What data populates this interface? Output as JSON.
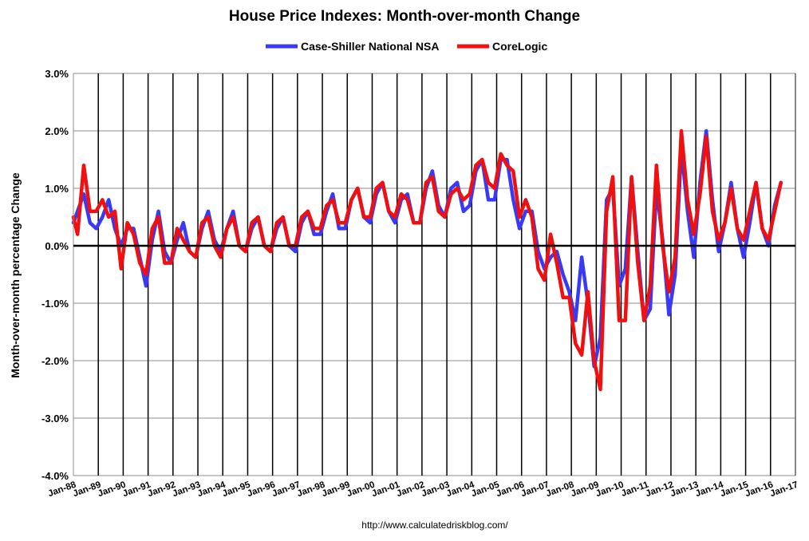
{
  "chart_data": {
    "type": "line",
    "title": "House Price Indexes: Month-over-month Change",
    "ylabel": "Month-over-month percentage Change",
    "xlabel": "",
    "source_note": "http://www.calculatedriskblog.com/",
    "ylim": [
      -4.0,
      3.0
    ],
    "yticks": [
      3.0,
      2.0,
      1.0,
      0.0,
      -1.0,
      -2.0,
      -3.0,
      -4.0
    ],
    "ytick_labels": [
      "3.0%",
      "2.0%",
      "1.0%",
      "0.0%",
      "-1.0%",
      "-2.0%",
      "-3.0%",
      "-4.0%"
    ],
    "x_start": "1988-01",
    "x_end": "2017-01",
    "xtick_labels": [
      "Jan-88",
      "Jan-89",
      "Jan-90",
      "Jan-91",
      "Jan-92",
      "Jan-93",
      "Jan-94",
      "Jan-95",
      "Jan-96",
      "Jan-97",
      "Jan-98",
      "Jan-99",
      "Jan-00",
      "Jan-01",
      "Jan-02",
      "Jan-03",
      "Jan-04",
      "Jan-05",
      "Jan-06",
      "Jan-07",
      "Jan-08",
      "Jan-09",
      "Jan-10",
      "Jan-11",
      "Jan-12",
      "Jan-13",
      "Jan-14",
      "Jan-15",
      "Jan-16",
      "Jan-17"
    ],
    "grid": "vertical gridlines at each January; horizontal gridlines at each 1.0%",
    "legend_position": "top-center",
    "series": [
      {
        "name": "Case-Shiller National NSA",
        "color": "#3a3af5",
        "points": [
          [
            "1988-01",
            0.4
          ],
          [
            "1988-03",
            0.6
          ],
          [
            "1988-06",
            0.9
          ],
          [
            "1988-09",
            0.4
          ],
          [
            "1988-12",
            0.3
          ],
          [
            "1989-03",
            0.5
          ],
          [
            "1989-06",
            0.8
          ],
          [
            "1989-09",
            0.3
          ],
          [
            "1989-12",
            0.0
          ],
          [
            "1990-03",
            0.3
          ],
          [
            "1990-06",
            0.3
          ],
          [
            "1990-09",
            -0.2
          ],
          [
            "1990-12",
            -0.7
          ],
          [
            "1991-03",
            0.1
          ],
          [
            "1991-06",
            0.6
          ],
          [
            "1991-09",
            -0.1
          ],
          [
            "1991-12",
            -0.3
          ],
          [
            "1992-03",
            0.1
          ],
          [
            "1992-06",
            0.4
          ],
          [
            "1992-09",
            -0.1
          ],
          [
            "1992-12",
            -0.2
          ],
          [
            "1993-03",
            0.3
          ],
          [
            "1993-06",
            0.6
          ],
          [
            "1993-09",
            0.1
          ],
          [
            "1993-12",
            -0.1
          ],
          [
            "1994-03",
            0.3
          ],
          [
            "1994-06",
            0.6
          ],
          [
            "1994-09",
            0.0
          ],
          [
            "1994-12",
            -0.1
          ],
          [
            "1995-03",
            0.3
          ],
          [
            "1995-06",
            0.5
          ],
          [
            "1995-09",
            0.0
          ],
          [
            "1995-12",
            -0.1
          ],
          [
            "1996-03",
            0.3
          ],
          [
            "1996-06",
            0.5
          ],
          [
            "1996-09",
            0.0
          ],
          [
            "1996-12",
            -0.1
          ],
          [
            "1997-03",
            0.4
          ],
          [
            "1997-06",
            0.6
          ],
          [
            "1997-09",
            0.2
          ],
          [
            "1997-12",
            0.2
          ],
          [
            "1998-03",
            0.6
          ],
          [
            "1998-06",
            0.9
          ],
          [
            "1998-09",
            0.3
          ],
          [
            "1998-12",
            0.3
          ],
          [
            "1999-03",
            0.8
          ],
          [
            "1999-06",
            1.0
          ],
          [
            "1999-09",
            0.5
          ],
          [
            "1999-12",
            0.4
          ],
          [
            "2000-03",
            0.9
          ],
          [
            "2000-06",
            1.1
          ],
          [
            "2000-09",
            0.6
          ],
          [
            "2000-12",
            0.4
          ],
          [
            "2001-03",
            0.8
          ],
          [
            "2001-06",
            0.9
          ],
          [
            "2001-09",
            0.4
          ],
          [
            "2001-12",
            0.4
          ],
          [
            "2002-03",
            1.0
          ],
          [
            "2002-06",
            1.3
          ],
          [
            "2002-09",
            0.7
          ],
          [
            "2002-12",
            0.5
          ],
          [
            "2003-03",
            1.0
          ],
          [
            "2003-06",
            1.1
          ],
          [
            "2003-09",
            0.6
          ],
          [
            "2003-12",
            0.7
          ],
          [
            "2004-03",
            1.3
          ],
          [
            "2004-06",
            1.5
          ],
          [
            "2004-09",
            0.8
          ],
          [
            "2004-12",
            0.8
          ],
          [
            "2005-03",
            1.5
          ],
          [
            "2005-06",
            1.5
          ],
          [
            "2005-09",
            0.8
          ],
          [
            "2005-12",
            0.3
          ],
          [
            "2006-03",
            0.6
          ],
          [
            "2006-06",
            0.6
          ],
          [
            "2006-09",
            -0.1
          ],
          [
            "2006-12",
            -0.4
          ],
          [
            "2007-03",
            -0.2
          ],
          [
            "2007-06",
            -0.1
          ],
          [
            "2007-09",
            -0.5
          ],
          [
            "2007-12",
            -0.8
          ],
          [
            "2008-03",
            -1.3
          ],
          [
            "2008-06",
            -0.2
          ],
          [
            "2008-09",
            -1.0
          ],
          [
            "2008-12",
            -2.1
          ],
          [
            "2009-03",
            -1.6
          ],
          [
            "2009-06",
            0.8
          ],
          [
            "2009-09",
            1.0
          ],
          [
            "2009-12",
            -0.7
          ],
          [
            "2010-03",
            -0.4
          ],
          [
            "2010-06",
            1.2
          ],
          [
            "2010-09",
            -0.1
          ],
          [
            "2010-12",
            -1.3
          ],
          [
            "2011-03",
            -1.1
          ],
          [
            "2011-06",
            1.0
          ],
          [
            "2011-09",
            0.1
          ],
          [
            "2011-12",
            -1.2
          ],
          [
            "2012-03",
            -0.5
          ],
          [
            "2012-06",
            1.7
          ],
          [
            "2012-09",
            0.6
          ],
          [
            "2012-12",
            -0.2
          ],
          [
            "2013-03",
            1.1
          ],
          [
            "2013-06",
            2.0
          ],
          [
            "2013-09",
            0.8
          ],
          [
            "2013-12",
            -0.1
          ],
          [
            "2014-03",
            0.4
          ],
          [
            "2014-06",
            1.1
          ],
          [
            "2014-09",
            0.3
          ],
          [
            "2014-12",
            -0.2
          ],
          [
            "2015-03",
            0.4
          ],
          [
            "2015-06",
            1.1
          ],
          [
            "2015-09",
            0.3
          ],
          [
            "2015-12",
            0.0
          ],
          [
            "2016-03",
            0.7
          ],
          [
            "2016-06",
            1.1
          ]
        ]
      },
      {
        "name": "CoreLogic",
        "color": "#f01010",
        "points": [
          [
            "1988-01",
            0.5
          ],
          [
            "1988-03",
            0.2
          ],
          [
            "1988-06",
            1.4
          ],
          [
            "1988-09",
            0.6
          ],
          [
            "1988-12",
            0.6
          ],
          [
            "1989-03",
            0.8
          ],
          [
            "1989-06",
            0.5
          ],
          [
            "1989-09",
            0.6
          ],
          [
            "1989-12",
            -0.4
          ],
          [
            "1990-03",
            0.4
          ],
          [
            "1990-06",
            0.2
          ],
          [
            "1990-09",
            -0.3
          ],
          [
            "1990-12",
            -0.5
          ],
          [
            "1991-03",
            0.3
          ],
          [
            "1991-06",
            0.5
          ],
          [
            "1991-09",
            -0.3
          ],
          [
            "1991-12",
            -0.3
          ],
          [
            "1992-03",
            0.3
          ],
          [
            "1992-06",
            0.1
          ],
          [
            "1992-09",
            -0.1
          ],
          [
            "1992-12",
            -0.2
          ],
          [
            "1993-03",
            0.4
          ],
          [
            "1993-06",
            0.5
          ],
          [
            "1993-09",
            0.0
          ],
          [
            "1993-12",
            -0.2
          ],
          [
            "1994-03",
            0.3
          ],
          [
            "1994-06",
            0.5
          ],
          [
            "1994-09",
            0.0
          ],
          [
            "1994-12",
            -0.1
          ],
          [
            "1995-03",
            0.4
          ],
          [
            "1995-06",
            0.5
          ],
          [
            "1995-09",
            0.0
          ],
          [
            "1995-12",
            -0.1
          ],
          [
            "1996-03",
            0.4
          ],
          [
            "1996-06",
            0.5
          ],
          [
            "1996-09",
            0.0
          ],
          [
            "1996-12",
            0.0
          ],
          [
            "1997-03",
            0.5
          ],
          [
            "1997-06",
            0.6
          ],
          [
            "1997-09",
            0.3
          ],
          [
            "1997-12",
            0.3
          ],
          [
            "1998-03",
            0.7
          ],
          [
            "1998-06",
            0.8
          ],
          [
            "1998-09",
            0.4
          ],
          [
            "1998-12",
            0.4
          ],
          [
            "1999-03",
            0.8
          ],
          [
            "1999-06",
            1.0
          ],
          [
            "1999-09",
            0.5
          ],
          [
            "1999-12",
            0.5
          ],
          [
            "2000-03",
            1.0
          ],
          [
            "2000-06",
            1.1
          ],
          [
            "2000-09",
            0.6
          ],
          [
            "2000-12",
            0.5
          ],
          [
            "2001-03",
            0.9
          ],
          [
            "2001-06",
            0.8
          ],
          [
            "2001-09",
            0.4
          ],
          [
            "2001-12",
            0.4
          ],
          [
            "2002-03",
            1.1
          ],
          [
            "2002-06",
            1.2
          ],
          [
            "2002-09",
            0.6
          ],
          [
            "2002-12",
            0.5
          ],
          [
            "2003-03",
            0.9
          ],
          [
            "2003-06",
            1.0
          ],
          [
            "2003-09",
            0.8
          ],
          [
            "2003-12",
            0.9
          ],
          [
            "2004-03",
            1.4
          ],
          [
            "2004-06",
            1.5
          ],
          [
            "2004-09",
            1.1
          ],
          [
            "2004-12",
            1.0
          ],
          [
            "2005-03",
            1.6
          ],
          [
            "2005-06",
            1.4
          ],
          [
            "2005-09",
            1.3
          ],
          [
            "2005-12",
            0.5
          ],
          [
            "2006-03",
            0.8
          ],
          [
            "2006-06",
            0.5
          ],
          [
            "2006-09",
            -0.4
          ],
          [
            "2006-12",
            -0.6
          ],
          [
            "2007-03",
            0.2
          ],
          [
            "2007-06",
            -0.3
          ],
          [
            "2007-09",
            -0.9
          ],
          [
            "2007-12",
            -0.9
          ],
          [
            "2008-03",
            -1.7
          ],
          [
            "2008-06",
            -1.9
          ],
          [
            "2008-09",
            -0.8
          ],
          [
            "2008-12",
            -2.0
          ],
          [
            "2009-03",
            -2.5
          ],
          [
            "2009-06",
            0.6
          ],
          [
            "2009-09",
            1.2
          ],
          [
            "2009-12",
            -1.3
          ],
          [
            "2010-03",
            -1.3
          ],
          [
            "2010-06",
            1.2
          ],
          [
            "2010-09",
            -0.3
          ],
          [
            "2010-12",
            -1.3
          ],
          [
            "2011-03",
            -0.7
          ],
          [
            "2011-06",
            1.4
          ],
          [
            "2011-09",
            0.0
          ],
          [
            "2011-12",
            -0.8
          ],
          [
            "2012-03",
            -0.2
          ],
          [
            "2012-06",
            2.0
          ],
          [
            "2012-09",
            0.8
          ],
          [
            "2012-12",
            0.2
          ],
          [
            "2013-03",
            0.9
          ],
          [
            "2013-06",
            1.9
          ],
          [
            "2013-09",
            0.6
          ],
          [
            "2013-12",
            0.1
          ],
          [
            "2014-03",
            0.4
          ],
          [
            "2014-06",
            1.0
          ],
          [
            "2014-09",
            0.3
          ],
          [
            "2014-12",
            0.1
          ],
          [
            "2015-03",
            0.6
          ],
          [
            "2015-06",
            1.1
          ],
          [
            "2015-09",
            0.3
          ],
          [
            "2015-12",
            0.1
          ],
          [
            "2016-03",
            0.6
          ],
          [
            "2016-06",
            1.1
          ]
        ]
      }
    ]
  }
}
